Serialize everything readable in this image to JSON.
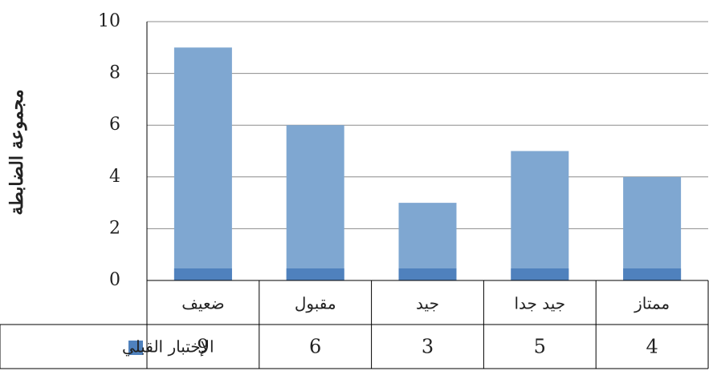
{
  "chart_data": {
    "type": "bar",
    "y_label": "مجموعة الضابطة",
    "categories": [
      "ضعيف",
      "مقبول",
      "جيد",
      "جيد جدا",
      "ممتاز"
    ],
    "series": [
      {
        "name": "الإختبار القبلي",
        "color": "#7fa7d1",
        "values": [
          9,
          6,
          3,
          5,
          4
        ]
      }
    ],
    "ylim": [
      0,
      10
    ],
    "yticks": [
      0,
      2,
      4,
      6,
      8,
      10
    ],
    "grid": true
  }
}
